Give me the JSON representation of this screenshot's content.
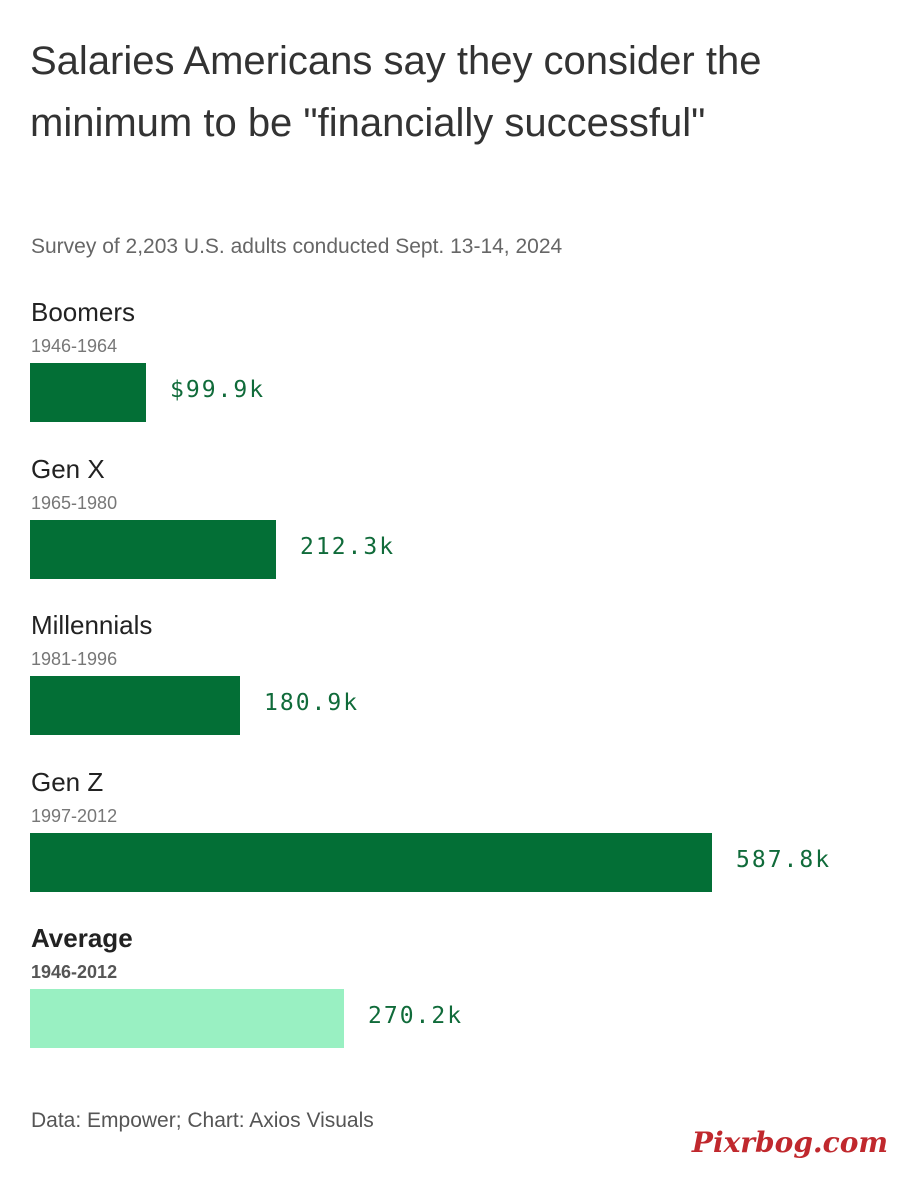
{
  "chart_data": {
    "type": "bar",
    "orientation": "horizontal",
    "title": "Salaries Americans say they consider the minimum to be \"financially successful\"",
    "subtitle": "Survey of 2,203 U.S. adults conducted Sept. 13-14, 2024",
    "categories": [
      "Boomers",
      "Gen X",
      "Millennials",
      "Gen Z",
      "Average"
    ],
    "year_ranges": [
      "1946-1964",
      "1965-1980",
      "1981-1996",
      "1997-2012",
      "1946-2012"
    ],
    "values": [
      99.9,
      212.3,
      180.9,
      587.8,
      270.2
    ],
    "value_labels": [
      "$99.9k",
      "212.3k",
      "180.9k",
      "587.8k",
      "270.2k"
    ],
    "unit": "thousands of USD",
    "xlim": [
      0,
      587.8
    ],
    "grid": false,
    "colors": {
      "bar": "#036f36",
      "average_bar": "#99f0c2",
      "value_text": "#106b3a"
    }
  },
  "footer": {
    "source": "Data: Empower; Chart: Axios Visuals"
  },
  "watermark": {
    "text": "Pixrbog.com"
  }
}
